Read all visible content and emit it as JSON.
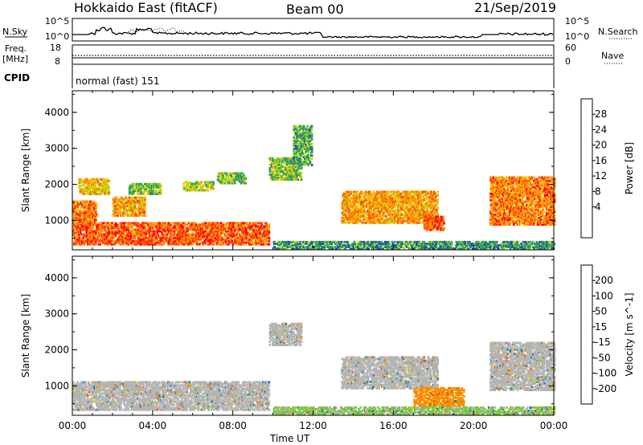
{
  "header": {
    "radar": "Hokkaido East (fitACF)",
    "beam": "Beam 00",
    "date": "21/Sep/2019"
  },
  "top_panels": {
    "nsky_label": "N.Sky",
    "nsky_ticks": [
      "10^5",
      "10^0"
    ],
    "nsearch_label": "N.Search",
    "nsearch_ticks": [
      "10^5",
      "10^0"
    ],
    "freq_label_1": "Freq.",
    "freq_label_2": "[MHz]",
    "freq_ticks": [
      "18",
      "8"
    ],
    "nave_label": "Nave",
    "nave_ticks": [
      "60",
      "0"
    ],
    "cpid_label": "CPID",
    "cpid_value": "normal (fast) 151"
  },
  "chart_data": [
    {
      "type": "heatmap",
      "panel": "power",
      "ylabel": "Slant Range [km]",
      "xlabel": "",
      "x_tick_labels": [
        "00:00",
        "04:00",
        "08:00",
        "12:00",
        "16:00",
        "20:00",
        "00:00"
      ],
      "y_tick_labels": [
        "1000",
        "2000",
        "3000",
        "4000"
      ],
      "xlim_hours": [
        0,
        24
      ],
      "ylim_km": [
        180,
        4600
      ],
      "colorbar_label": "Power [dB]",
      "colorbar_ticks": [
        "28",
        "24",
        "20",
        "16",
        "12",
        "8",
        "4"
      ],
      "colorbar_colors": [
        "#ff0000",
        "#ff5000",
        "#ff8c00",
        "#f5be00",
        "#b4dc14",
        "#3cb43c",
        "#2e8b70",
        "#1e50b4",
        "#0000ff"
      ],
      "echo_regions": [
        {
          "t0": 0.0,
          "t1": 9.8,
          "r0": 300,
          "r1": 900,
          "value": 26
        },
        {
          "t0": 0.0,
          "t1": 1.2,
          "r0": 900,
          "r1": 1500,
          "value": 24
        },
        {
          "t0": 2.0,
          "t1": 3.6,
          "r0": 1100,
          "r1": 1600,
          "value": 22
        },
        {
          "t0": 0.3,
          "t1": 1.8,
          "r0": 1700,
          "r1": 2150,
          "value": 20
        },
        {
          "t0": 2.8,
          "t1": 4.4,
          "r0": 1700,
          "r1": 2000,
          "value": 14
        },
        {
          "t0": 5.5,
          "t1": 7.0,
          "r0": 1800,
          "r1": 2050,
          "value": 16
        },
        {
          "t0": 7.2,
          "t1": 8.6,
          "r0": 2000,
          "r1": 2300,
          "value": 14
        },
        {
          "t0": 9.8,
          "t1": 11.4,
          "r0": 2100,
          "r1": 2700,
          "value": 14
        },
        {
          "t0": 11.0,
          "t1": 11.9,
          "r0": 2500,
          "r1": 3600,
          "value": 12
        },
        {
          "t0": 13.4,
          "t1": 18.2,
          "r0": 900,
          "r1": 1800,
          "value": 22
        },
        {
          "t0": 10.0,
          "t1": 24.0,
          "r0": 180,
          "r1": 400,
          "value": 10
        },
        {
          "t0": 17.5,
          "t1": 18.5,
          "r0": 700,
          "r1": 1100,
          "value": 26
        },
        {
          "t0": 20.8,
          "t1": 24.0,
          "r0": 850,
          "r1": 2200,
          "value": 24
        }
      ]
    },
    {
      "type": "heatmap",
      "panel": "velocity",
      "ylabel": "Slant Range [km]",
      "xlabel": "Time UT",
      "x_tick_labels": [
        "00:00",
        "04:00",
        "08:00",
        "12:00",
        "16:00",
        "20:00",
        "00:00"
      ],
      "y_tick_labels": [
        "1000",
        "2000",
        "3000",
        "4000"
      ],
      "xlim_hours": [
        0,
        24
      ],
      "ylim_km": [
        180,
        4600
      ],
      "colorbar_label": "Velocity [m s^-1]",
      "colorbar_ticks": [
        "200",
        "100",
        "50",
        "15",
        "-15",
        "-50",
        "-100",
        "-200"
      ],
      "colorbar_colors": [
        "#1432c8",
        "#1e78c8",
        "#2e8b50",
        "#78c83c",
        "#b4b4b4",
        "#f0d200",
        "#ff8c00",
        "#ff5000",
        "#ff0000"
      ],
      "echo_regions": [
        {
          "t0": 0.0,
          "t1": 9.8,
          "r0": 300,
          "r1": 1100,
          "value": 0
        },
        {
          "t0": 13.4,
          "t1": 18.2,
          "r0": 900,
          "r1": 1800,
          "value": 0
        },
        {
          "t0": 20.8,
          "t1": 24.0,
          "r0": 850,
          "r1": 2200,
          "value": 0
        },
        {
          "t0": 17.0,
          "t1": 19.5,
          "r0": 400,
          "r1": 900,
          "value": -60
        },
        {
          "t0": 10.0,
          "t1": 24.0,
          "r0": 180,
          "r1": 400,
          "value": 20
        },
        {
          "t0": 9.8,
          "t1": 11.4,
          "r0": 2100,
          "r1": 2700,
          "value": 0
        }
      ]
    }
  ]
}
